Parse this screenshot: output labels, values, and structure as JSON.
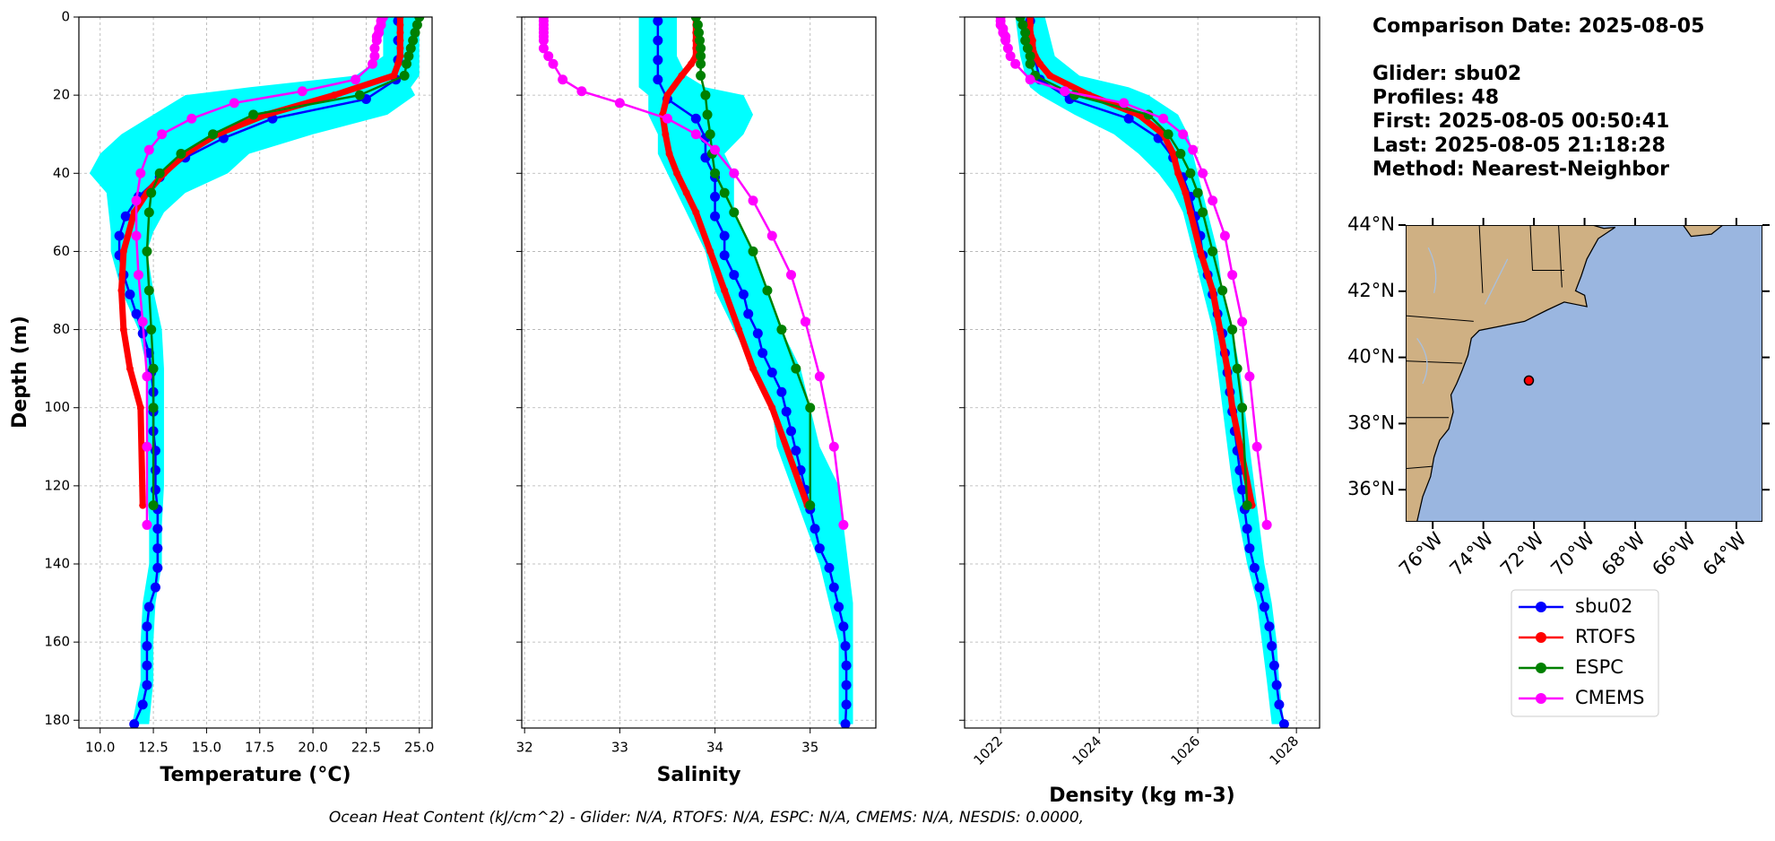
{
  "chart_data": {
    "type": "profile",
    "ylabel": "Depth (m)",
    "ylim": [
      0,
      182
    ],
    "yticks": [
      0,
      20,
      40,
      60,
      80,
      100,
      120,
      140,
      160,
      180
    ],
    "grid": true,
    "panels": [
      {
        "xlabel": "Temperature (°C)",
        "xlim": [
          9.0,
          25.6
        ],
        "xticks": [
          {
            "value": 10,
            "label": "10.0"
          },
          {
            "value": 12.5,
            "label": "12.5"
          },
          {
            "value": 15,
            "label": "15.0"
          },
          {
            "value": 17.5,
            "label": "17.5"
          },
          {
            "value": 20,
            "label": "20.0"
          },
          {
            "value": 22.5,
            "label": "22.5"
          },
          {
            "value": 25,
            "label": "25.0"
          }
        ]
      },
      {
        "xlabel": "Salinity",
        "xlim": [
          31.97,
          35.69
        ],
        "xticks": [
          32,
          33,
          34,
          35
        ]
      },
      {
        "xlabel": "Density (kg m-3)",
        "xlim": [
          1021.27,
          1028.47
        ],
        "xticks": [
          1022,
          1024,
          1026,
          1028
        ]
      }
    ],
    "band": {
      "color": "#00ffff",
      "y": [
        0,
        10,
        15,
        18,
        20,
        25,
        30,
        35,
        40,
        45,
        50,
        55,
        60,
        70,
        80,
        90,
        100,
        110,
        120,
        130,
        140,
        150,
        160,
        170,
        181
      ],
      "min": [
        [
          23.3,
          23.3,
          22.0,
          17.0,
          14.0,
          12.5,
          11.0,
          10.0,
          9.5,
          10.3,
          10.4,
          10.5,
          10.5,
          11.0,
          11.8,
          12.2,
          12.2,
          12.2,
          12.2,
          12.3,
          12.3,
          12.0,
          11.9,
          11.9,
          11.5
        ],
        [
          33.2,
          33.2,
          33.2,
          33.2,
          33.3,
          33.3,
          33.4,
          33.4,
          33.5,
          33.6,
          33.7,
          33.8,
          33.9,
          34.0,
          34.2,
          34.4,
          34.6,
          34.65,
          34.8,
          34.95,
          35.1,
          35.2,
          35.3,
          35.3,
          35.3
        ],
        [
          1022.3,
          1022.4,
          1022.5,
          1022.6,
          1022.8,
          1023.5,
          1024.3,
          1024.8,
          1025.2,
          1025.5,
          1025.7,
          1025.8,
          1025.9,
          1026.1,
          1026.3,
          1026.4,
          1026.5,
          1026.6,
          1026.7,
          1026.85,
          1027.0,
          1027.2,
          1027.3,
          1027.4,
          1027.5
        ]
      ],
      "max": [
        [
          25.0,
          25.0,
          25.0,
          24.6,
          24.8,
          23.5,
          20.0,
          17.0,
          16.0,
          14.0,
          13.0,
          12.5,
          12.2,
          12.5,
          12.9,
          13.0,
          13.0,
          13.0,
          13.0,
          12.9,
          12.9,
          12.6,
          12.5,
          12.5,
          12.3
        ],
        [
          33.6,
          33.6,
          33.7,
          33.9,
          34.3,
          34.4,
          34.3,
          34.1,
          34.2,
          34.2,
          34.2,
          34.3,
          34.4,
          34.55,
          34.7,
          34.9,
          35.0,
          35.1,
          35.3,
          35.35,
          35.4,
          35.45,
          35.45,
          35.45,
          35.45
        ],
        [
          1022.9,
          1023.1,
          1023.6,
          1024.6,
          1025.0,
          1025.6,
          1025.8,
          1025.9,
          1026.0,
          1026.1,
          1026.2,
          1026.3,
          1026.4,
          1026.5,
          1026.7,
          1026.85,
          1026.95,
          1027.05,
          1027.15,
          1027.25,
          1027.35,
          1027.5,
          1027.6,
          1027.65,
          1027.75
        ]
      ]
    },
    "series": [
      {
        "name": "sbu02",
        "color": "#0000ff",
        "y": [
          1,
          6,
          11,
          16,
          21,
          26,
          31,
          36,
          41,
          46,
          51,
          56,
          61,
          66,
          71,
          76,
          81,
          86,
          91,
          96,
          101,
          106,
          111,
          116,
          121,
          126,
          131,
          136,
          141,
          146,
          151,
          156,
          161,
          166,
          171,
          176,
          181
        ],
        "values": [
          [
            24.0,
            24.0,
            24.0,
            23.9,
            22.5,
            18.1,
            15.8,
            14.0,
            12.8,
            11.8,
            11.2,
            10.9,
            10.9,
            11.1,
            11.4,
            11.7,
            12.0,
            12.3,
            12.4,
            12.5,
            12.5,
            12.5,
            12.6,
            12.6,
            12.6,
            12.7,
            12.7,
            12.7,
            12.7,
            12.6,
            12.3,
            12.2,
            12.2,
            12.2,
            12.2,
            12.0,
            11.6
          ],
          [
            33.4,
            33.4,
            33.4,
            33.4,
            33.5,
            33.8,
            33.9,
            33.9,
            34.0,
            34.0,
            34.0,
            34.1,
            34.1,
            34.2,
            34.3,
            34.35,
            34.45,
            34.5,
            34.6,
            34.7,
            34.75,
            34.8,
            34.85,
            34.9,
            34.95,
            35.0,
            35.05,
            35.1,
            35.2,
            35.25,
            35.3,
            35.35,
            35.37,
            35.38,
            35.38,
            35.38,
            35.37
          ],
          [
            1022.6,
            1022.6,
            1022.7,
            1022.8,
            1023.4,
            1024.6,
            1025.2,
            1025.5,
            1025.7,
            1025.85,
            1025.95,
            1026.05,
            1026.1,
            1026.2,
            1026.3,
            1026.4,
            1026.5,
            1026.55,
            1026.6,
            1026.65,
            1026.7,
            1026.75,
            1026.8,
            1026.85,
            1026.9,
            1026.95,
            1027.0,
            1027.05,
            1027.15,
            1027.25,
            1027.35,
            1027.45,
            1027.5,
            1027.55,
            1027.6,
            1027.65,
            1027.75
          ]
        ]
      },
      {
        "name": "RTOFS",
        "color": "#ff0000",
        "y": [
          0,
          2,
          4,
          6,
          8,
          10,
          12,
          15,
          20,
          25,
          30,
          35,
          40,
          45,
          50,
          60,
          70,
          80,
          90,
          100,
          125
        ],
        "values": [
          [
            24.1,
            24.1,
            24.1,
            24.1,
            24.1,
            24.1,
            24.0,
            23.8,
            21.0,
            17.8,
            15.5,
            14.0,
            13.0,
            12.2,
            11.6,
            11.1,
            11.0,
            11.1,
            11.4,
            11.9,
            12.0
          ],
          [
            33.8,
            33.8,
            33.8,
            33.8,
            33.8,
            33.8,
            33.75,
            33.65,
            33.5,
            33.45,
            33.48,
            33.52,
            33.6,
            33.7,
            33.8,
            33.95,
            34.1,
            34.25,
            34.4,
            34.6,
            34.97
          ],
          [
            1022.6,
            1022.6,
            1022.6,
            1022.65,
            1022.65,
            1022.7,
            1022.8,
            1023.0,
            1023.8,
            1024.8,
            1025.3,
            1025.5,
            1025.6,
            1025.75,
            1025.85,
            1026.05,
            1026.3,
            1026.45,
            1026.6,
            1026.7,
            1027.1
          ]
        ]
      },
      {
        "name": "ESPC",
        "color": "#008000",
        "y": [
          0,
          2,
          4,
          6,
          8,
          10,
          12,
          15,
          20,
          25,
          30,
          35,
          40,
          45,
          50,
          60,
          70,
          80,
          90,
          100,
          125
        ],
        "values": [
          [
            25.0,
            24.9,
            24.8,
            24.7,
            24.6,
            24.5,
            24.4,
            24.3,
            22.2,
            17.2,
            15.3,
            13.8,
            12.8,
            12.4,
            12.3,
            12.2,
            12.3,
            12.4,
            12.5,
            12.5,
            12.5
          ],
          [
            33.8,
            33.82,
            33.83,
            33.84,
            33.85,
            33.85,
            33.85,
            33.85,
            33.9,
            33.92,
            33.95,
            33.97,
            34.0,
            34.1,
            34.2,
            34.4,
            34.55,
            34.7,
            34.85,
            35.0,
            35.0
          ],
          [
            1022.4,
            1022.45,
            1022.5,
            1022.5,
            1022.55,
            1022.6,
            1022.6,
            1022.7,
            1023.5,
            1025.0,
            1025.4,
            1025.65,
            1025.85,
            1026.0,
            1026.1,
            1026.3,
            1026.5,
            1026.7,
            1026.8,
            1026.9,
            1027.0
          ]
        ]
      },
      {
        "name": "CMEMS",
        "color": "#ff00ff",
        "y": [
          0,
          1,
          2,
          3,
          4,
          5,
          6,
          8,
          10,
          12,
          16,
          19,
          22,
          26,
          30,
          34,
          40,
          47,
          56,
          66,
          78,
          92,
          110,
          130
        ],
        "values": [
          [
            23.3,
            23.2,
            23.2,
            23.1,
            23.1,
            23.0,
            23.0,
            22.9,
            22.9,
            22.8,
            22.0,
            19.5,
            16.3,
            14.3,
            12.9,
            12.3,
            11.9,
            11.7,
            11.7,
            11.8,
            12.0,
            12.2,
            12.2,
            12.2
          ],
          [
            32.2,
            32.2,
            32.2,
            32.2,
            32.2,
            32.2,
            32.2,
            32.2,
            32.25,
            32.3,
            32.4,
            32.6,
            33.0,
            33.5,
            33.8,
            34.0,
            34.2,
            34.4,
            34.6,
            34.8,
            34.95,
            35.1,
            35.25,
            35.35
          ],
          [
            1022.0,
            1022.0,
            1022.0,
            1022.05,
            1022.05,
            1022.1,
            1022.1,
            1022.15,
            1022.2,
            1022.3,
            1022.6,
            1023.3,
            1024.5,
            1025.3,
            1025.7,
            1025.9,
            1026.1,
            1026.3,
            1026.55,
            1026.7,
            1026.9,
            1027.05,
            1027.2,
            1027.4
          ]
        ]
      }
    ]
  },
  "info": [
    "Comparison Date: 2025-08-05",
    "Glider: sbu02",
    "Profiles: 48",
    "First: 2025-08-05 00:50:41",
    "Last: 2025-08-05 21:18:28",
    "Method: Nearest-Neighbor"
  ],
  "footer": "Ocean Heat Content (kJ/cm^2) - Glider: N/A,  RTOFS: N/A,  ESPC: N/A,  CMEMS: N/A,  NESDIS: 0.0000,",
  "map": {
    "lonlim": [
      -77.07,
      -62.97
    ],
    "latlim": [
      35.03,
      44.0
    ],
    "lonticks": [
      {
        "value": -76,
        "label": "76°W"
      },
      {
        "value": -74,
        "label": "74°W"
      },
      {
        "value": -72,
        "label": "72°W"
      },
      {
        "value": -70,
        "label": "70°W"
      },
      {
        "value": -68,
        "label": "68°W"
      },
      {
        "value": -66,
        "label": "66°W"
      },
      {
        "value": -64,
        "label": "64°W"
      }
    ],
    "latticks": [
      {
        "value": 36,
        "label": "36°N"
      },
      {
        "value": 38,
        "label": "38°N"
      },
      {
        "value": 40,
        "label": "40°N"
      },
      {
        "value": 42,
        "label": "42°N"
      },
      {
        "value": 44,
        "label": "44°N"
      }
    ],
    "marker": {
      "lon": -72.2,
      "lat": 39.3,
      "color": "#ff0000"
    }
  }
}
